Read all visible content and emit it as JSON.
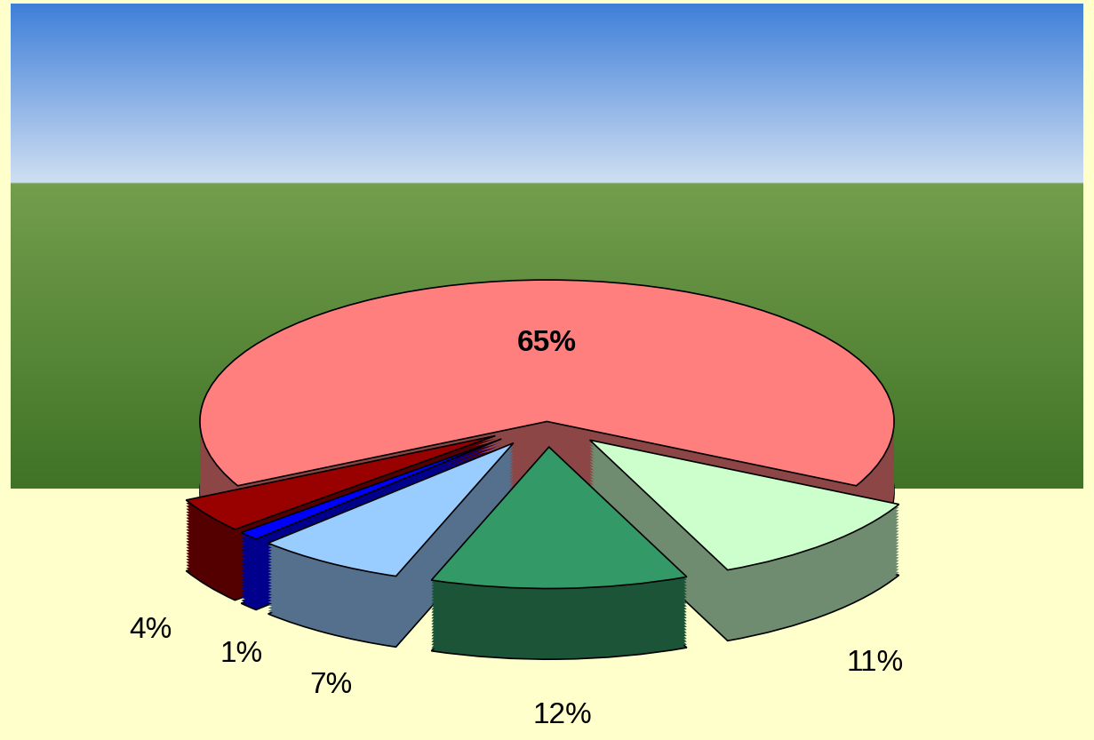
{
  "chart_data": {
    "type": "pie",
    "values": [
      65,
      11,
      12,
      7,
      1,
      4
    ],
    "value_labels": [
      "65%",
      "11%",
      "12%",
      "7%",
      "1%",
      "4%"
    ],
    "colors": [
      "#ff7f7f",
      "#ccffcc",
      "#339966",
      "#99ccff",
      "#0000ff",
      "#990000"
    ],
    "data_labels": true
  }
}
